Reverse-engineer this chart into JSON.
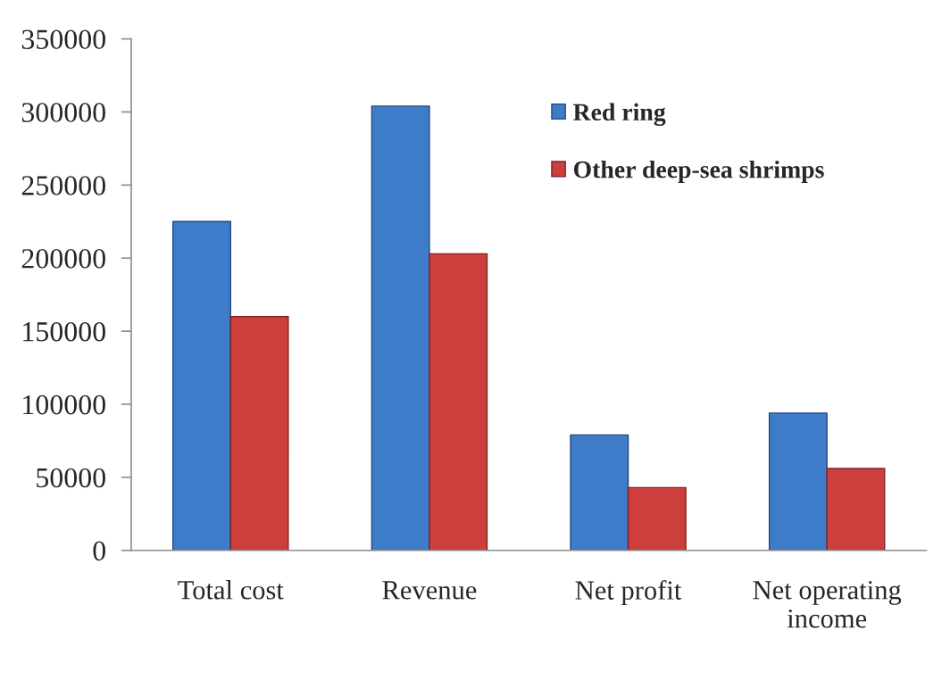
{
  "chart_data": {
    "type": "bar",
    "categories": [
      "Total cost",
      "Revenue",
      "Net profit",
      "Net operating income"
    ],
    "series": [
      {
        "name": "Red ring",
        "color": "#3e7cca",
        "values": [
          225000,
          304000,
          79000,
          94000
        ]
      },
      {
        "name": "Other deep-sea shrimps",
        "color": "#cc3f3c",
        "values": [
          160000,
          203000,
          43000,
          56000
        ]
      }
    ],
    "ylim": [
      0,
      350000
    ],
    "yticks": [
      0,
      50000,
      100000,
      150000,
      200000,
      250000,
      300000,
      350000
    ],
    "legend": "top right",
    "grid": false
  }
}
